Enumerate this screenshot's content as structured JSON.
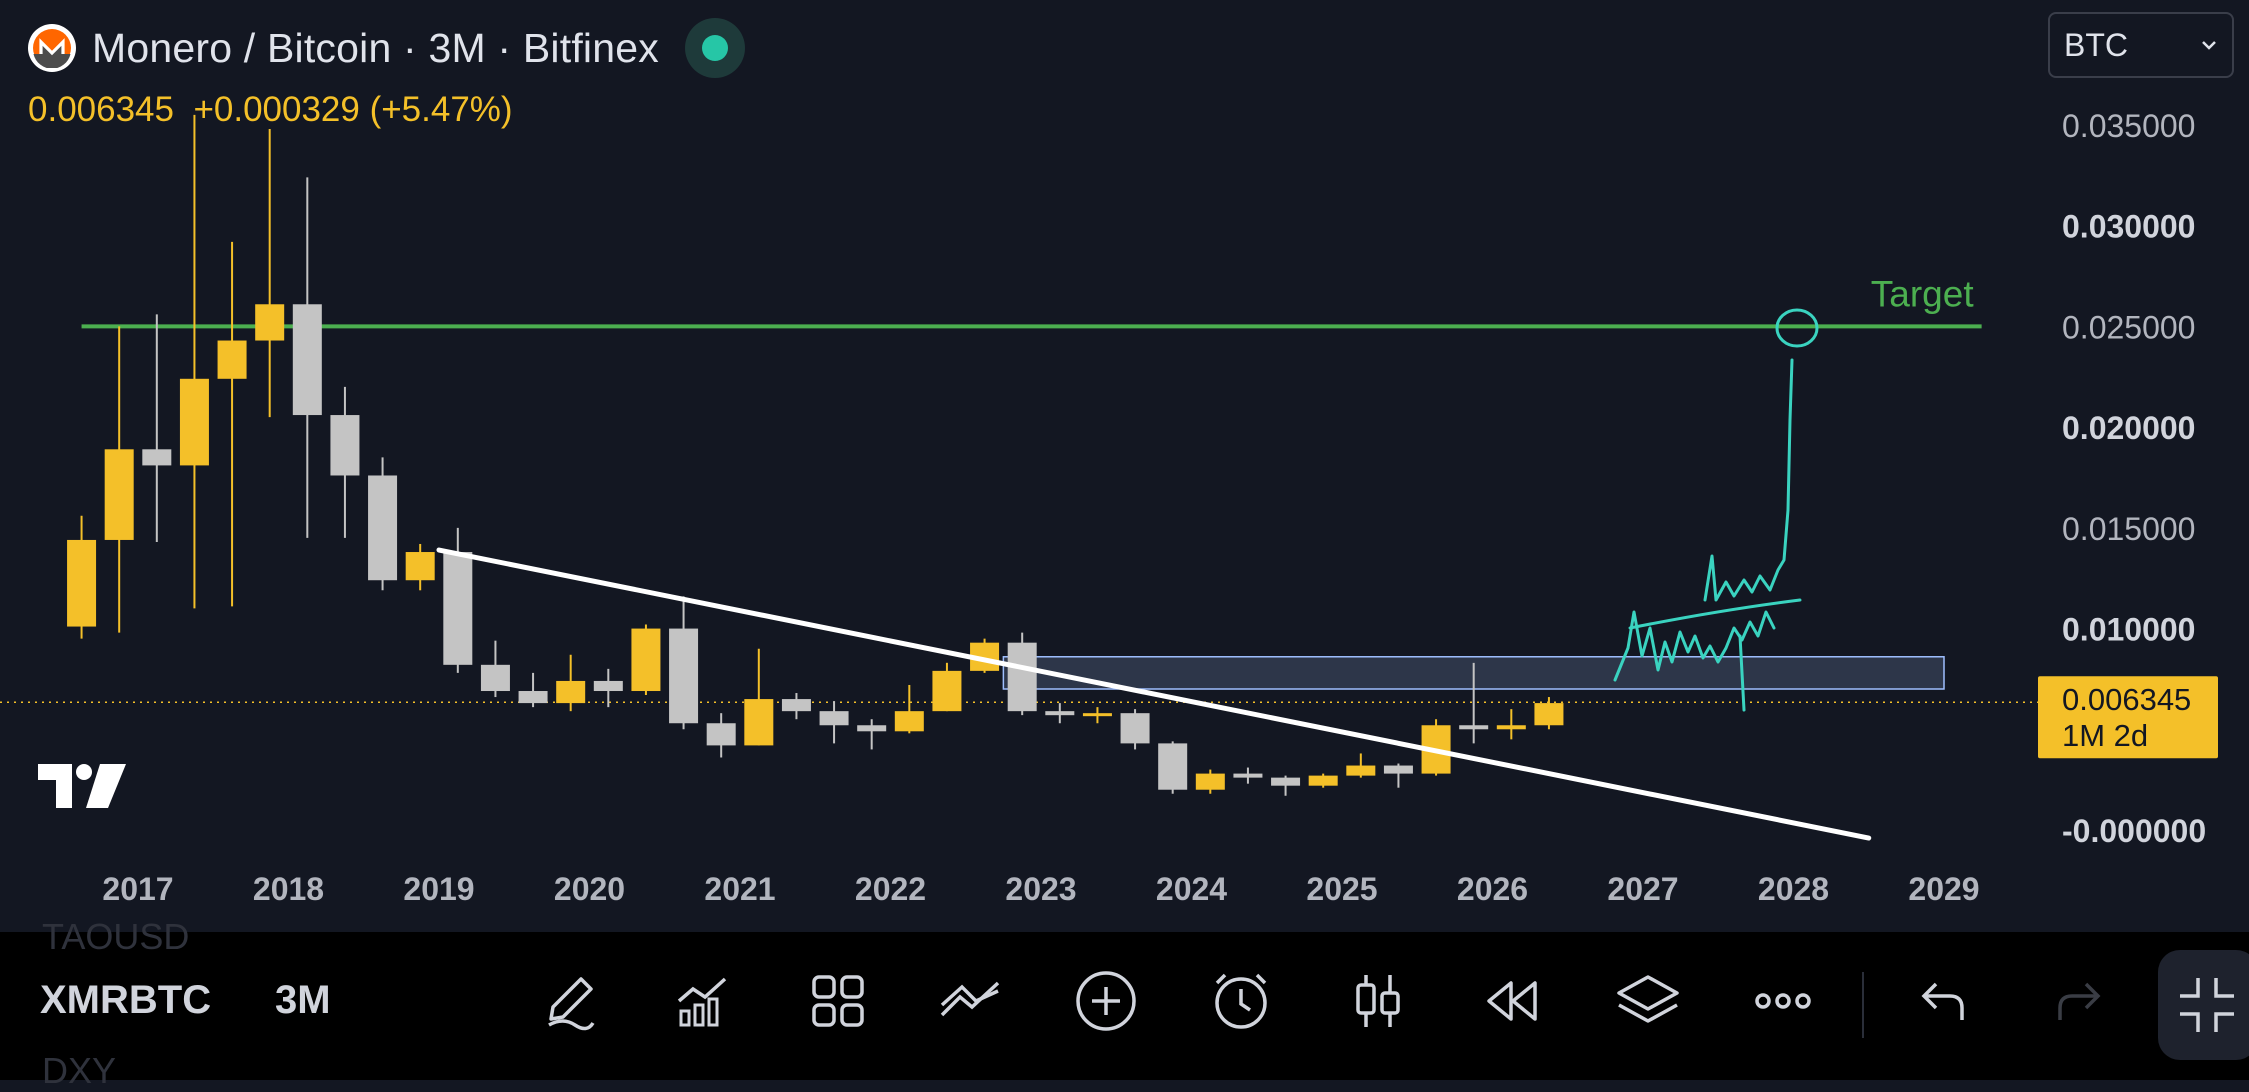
{
  "header": {
    "title": "Monero / Bitcoin · 3M · Bitfinex",
    "last_price": "0.006345",
    "change": "+0.000329 (+5.47%)"
  },
  "currency_select": {
    "value": "BTC"
  },
  "price_tag": {
    "price": "0.006345",
    "countdown": "1M 2d"
  },
  "annotations": {
    "target_label": "Target"
  },
  "bottom_bar": {
    "symbol": "XMRBTC",
    "interval": "3M",
    "ghost_prev_symbol": "TAOUSD",
    "ghost_next_symbol": "DXY",
    "tools": [
      "pen-icon",
      "indicators-icon",
      "templates-icon",
      "drawing-tools-icon",
      "add-icon",
      "alert-icon",
      "candle-type-icon",
      "replay-icon",
      "layers-icon",
      "more-icon",
      "undo-icon",
      "redo-icon",
      "fullscreen-exit-icon"
    ]
  },
  "colors": {
    "background": "#131722",
    "up_candle": "#f4c029",
    "down_candle": "#c4c4c4",
    "target_line": "#4caf50",
    "trend_line": "#ffffff",
    "zone_fill": "#a7c7ff",
    "sketch": "#3ad3c0",
    "price_tag": "#f4c029"
  },
  "chart_data": {
    "type": "candlestick",
    "symbol": "XMRBTC",
    "exchange": "Bitfinex",
    "timeframe": "3M",
    "y_axis": {
      "min": -0.0015,
      "max": 0.037,
      "ticks": [
        "0.035000",
        "0.030000",
        "0.025000",
        "0.020000",
        "0.015000",
        "0.010000",
        "-0.000000"
      ],
      "position": "right"
    },
    "x_axis": {
      "ticks": [
        "2017",
        "2018",
        "2019",
        "2020",
        "2021",
        "2022",
        "2023",
        "2024",
        "2025",
        "2026",
        "2027",
        "2028",
        "2029"
      ]
    },
    "candles": [
      {
        "t": 2016.625,
        "o": 0.0101,
        "h": 0.0156,
        "l": 0.0095,
        "c": 0.0144
      },
      {
        "t": 2016.875,
        "o": 0.0144,
        "h": 0.025,
        "l": 0.0098,
        "c": 0.0189
      },
      {
        "t": 2017.125,
        "o": 0.0189,
        "h": 0.0256,
        "l": 0.0143,
        "c": 0.0181
      },
      {
        "t": 2017.375,
        "o": 0.0181,
        "h": 0.0355,
        "l": 0.011,
        "c": 0.0224
      },
      {
        "t": 2017.625,
        "o": 0.0224,
        "h": 0.0292,
        "l": 0.0111,
        "c": 0.0243
      },
      {
        "t": 2017.875,
        "o": 0.0243,
        "h": 0.0348,
        "l": 0.0205,
        "c": 0.0261
      },
      {
        "t": 2018.125,
        "o": 0.0261,
        "h": 0.0324,
        "l": 0.0145,
        "c": 0.0206
      },
      {
        "t": 2018.375,
        "o": 0.0206,
        "h": 0.022,
        "l": 0.0145,
        "c": 0.0176
      },
      {
        "t": 2018.625,
        "o": 0.0176,
        "h": 0.0185,
        "l": 0.0119,
        "c": 0.0124
      },
      {
        "t": 2018.875,
        "o": 0.0124,
        "h": 0.0142,
        "l": 0.0119,
        "c": 0.0138
      },
      {
        "t": 2019.125,
        "o": 0.0138,
        "h": 0.015,
        "l": 0.0078,
        "c": 0.0082
      },
      {
        "t": 2019.375,
        "o": 0.0082,
        "h": 0.0094,
        "l": 0.0066,
        "c": 0.0069
      },
      {
        "t": 2019.625,
        "o": 0.0069,
        "h": 0.0078,
        "l": 0.0061,
        "c": 0.0063
      },
      {
        "t": 2019.875,
        "o": 0.0063,
        "h": 0.0087,
        "l": 0.0059,
        "c": 0.0074
      },
      {
        "t": 2020.125,
        "o": 0.0074,
        "h": 0.008,
        "l": 0.0061,
        "c": 0.0069
      },
      {
        "t": 2020.375,
        "o": 0.0069,
        "h": 0.0102,
        "l": 0.0067,
        "c": 0.01
      },
      {
        "t": 2020.625,
        "o": 0.01,
        "h": 0.0116,
        "l": 0.005,
        "c": 0.0053
      },
      {
        "t": 2020.875,
        "o": 0.0053,
        "h": 0.0058,
        "l": 0.0036,
        "c": 0.0042
      },
      {
        "t": 2021.125,
        "o": 0.0042,
        "h": 0.009,
        "l": 0.0042,
        "c": 0.0065
      },
      {
        "t": 2021.375,
        "o": 0.0065,
        "h": 0.0068,
        "l": 0.0055,
        "c": 0.0059
      },
      {
        "t": 2021.625,
        "o": 0.0059,
        "h": 0.0064,
        "l": 0.0043,
        "c": 0.0052
      },
      {
        "t": 2021.875,
        "o": 0.0052,
        "h": 0.0055,
        "l": 0.004,
        "c": 0.0049
      },
      {
        "t": 2022.125,
        "o": 0.0049,
        "h": 0.0072,
        "l": 0.0048,
        "c": 0.0059
      },
      {
        "t": 2022.375,
        "o": 0.0059,
        "h": 0.0083,
        "l": 0.0059,
        "c": 0.0079
      },
      {
        "t": 2022.625,
        "o": 0.0079,
        "h": 0.0095,
        "l": 0.0078,
        "c": 0.0093
      },
      {
        "t": 2022.875,
        "o": 0.0093,
        "h": 0.0098,
        "l": 0.0057,
        "c": 0.0059
      },
      {
        "t": 2023.125,
        "o": 0.0059,
        "h": 0.0063,
        "l": 0.0053,
        "c": 0.0057
      },
      {
        "t": 2023.375,
        "o": 0.0057,
        "h": 0.0061,
        "l": 0.0053,
        "c": 0.0058
      },
      {
        "t": 2023.625,
        "o": 0.0058,
        "h": 0.006,
        "l": 0.004,
        "c": 0.0043
      },
      {
        "t": 2023.875,
        "o": 0.0043,
        "h": 0.0044,
        "l": 0.0018,
        "c": 0.002
      },
      {
        "t": 2024.125,
        "o": 0.002,
        "h": 0.003,
        "l": 0.0018,
        "c": 0.0028
      },
      {
        "t": 2024.375,
        "o": 0.0028,
        "h": 0.0031,
        "l": 0.0023,
        "c": 0.0026
      },
      {
        "t": 2024.625,
        "o": 0.0026,
        "h": 0.0027,
        "l": 0.0017,
        "c": 0.0022
      },
      {
        "t": 2024.875,
        "o": 0.0022,
        "h": 0.0028,
        "l": 0.0021,
        "c": 0.0027
      },
      {
        "t": 2025.125,
        "o": 0.0027,
        "h": 0.0038,
        "l": 0.0026,
        "c": 0.0032
      },
      {
        "t": 2025.375,
        "o": 0.0032,
        "h": 0.0033,
        "l": 0.0021,
        "c": 0.0028
      },
      {
        "t": 2025.625,
        "o": 0.0028,
        "h": 0.0055,
        "l": 0.0027,
        "c": 0.0052
      },
      {
        "t": 2025.875,
        "o": 0.0052,
        "h": 0.0083,
        "l": 0.0043,
        "c": 0.005
      },
      {
        "t": 2026.125,
        "o": 0.005,
        "h": 0.006,
        "l": 0.0045,
        "c": 0.0052
      },
      {
        "t": 2026.375,
        "o": 0.0052,
        "h": 0.0066,
        "l": 0.005,
        "c": 0.0063
      }
    ],
    "horizontal_line": {
      "label": "Target",
      "value": 0.025,
      "from": 2016.625,
      "to": 2029.25
    },
    "trend_line": {
      "from": [
        2019.0,
        0.0139
      ],
      "to": [
        2028.5,
        -0.0004
      ]
    },
    "zone": {
      "from": 2022.75,
      "to": 2029.0,
      "low": 0.007,
      "high": 0.0086
    },
    "current_price": 0.006345,
    "grid": false,
    "legend": "none"
  }
}
